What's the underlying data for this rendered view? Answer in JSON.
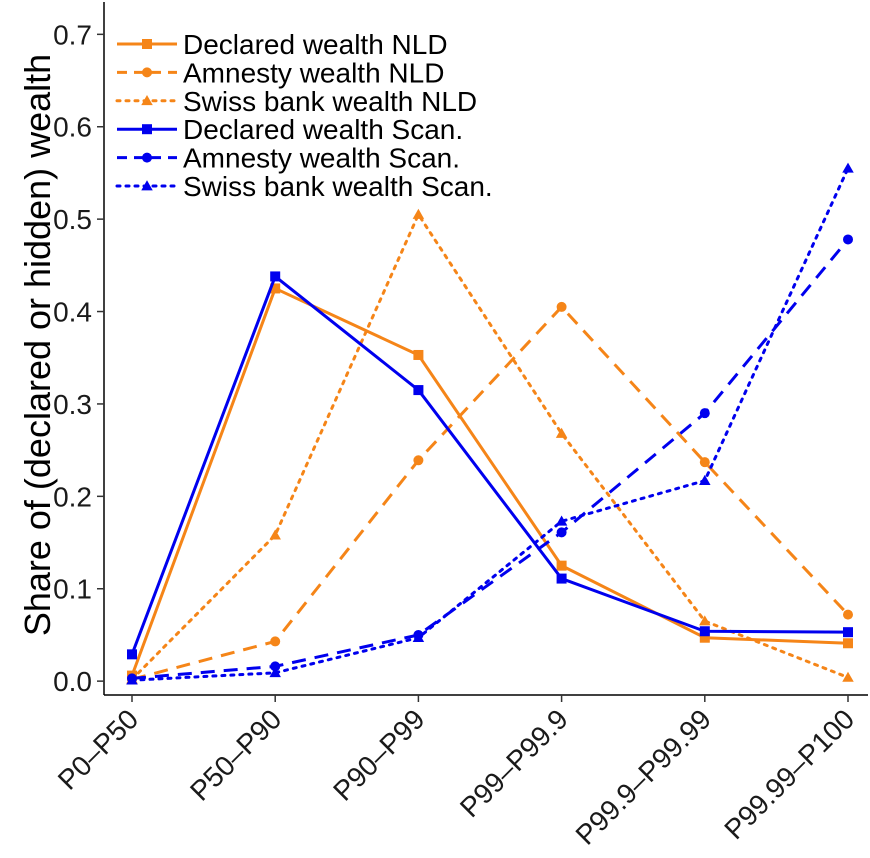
{
  "chart_data": {
    "type": "line",
    "title": "",
    "xlabel": "",
    "ylabel": "Share of (declared or hidden) wealth",
    "categories": [
      "P0–P50",
      "P50–P90",
      "P90–P99",
      "P99–P99.9",
      "P99.9–P99.99",
      "P99.99–P100"
    ],
    "ylim": [
      -0.015,
      0.735
    ],
    "yticks": [
      0.0,
      0.1,
      0.2,
      0.3,
      0.4,
      0.5,
      0.6,
      0.7
    ],
    "ytick_labels": [
      "0.0",
      "0.1",
      "0.2",
      "0.3",
      "0.4",
      "0.5",
      "0.6",
      "0.7"
    ],
    "grid": false,
    "legend_position": "top-left",
    "series": [
      {
        "name": "Declared wealth NLD",
        "color": "#f58518",
        "linestyle": "solid",
        "marker": "square",
        "values": [
          0.006,
          0.425,
          0.353,
          0.125,
          0.047,
          0.041
        ]
      },
      {
        "name": "Amnesty wealth NLD",
        "color": "#f58518",
        "linestyle": "dashed",
        "marker": "circle",
        "values": [
          0.002,
          0.043,
          0.239,
          0.405,
          0.237,
          0.072
        ]
      },
      {
        "name": "Swiss bank wealth NLD",
        "color": "#f58518",
        "linestyle": "dotted",
        "marker": "triangle",
        "values": [
          0.002,
          0.158,
          0.505,
          0.268,
          0.065,
          0.004
        ]
      },
      {
        "name": "Declared wealth Scan.",
        "color": "#0000ee",
        "linestyle": "solid",
        "marker": "square",
        "values": [
          0.029,
          0.438,
          0.315,
          0.111,
          0.054,
          0.053
        ]
      },
      {
        "name": "Amnesty wealth Scan.",
        "color": "#0000ee",
        "linestyle": "dashed",
        "marker": "circle",
        "values": [
          0.003,
          0.016,
          0.05,
          0.161,
          0.29,
          0.478
        ]
      },
      {
        "name": "Swiss bank wealth Scan.",
        "color": "#0000ee",
        "linestyle": "dotted",
        "marker": "triangle",
        "values": [
          0.001,
          0.009,
          0.047,
          0.173,
          0.217,
          0.555
        ]
      }
    ]
  }
}
